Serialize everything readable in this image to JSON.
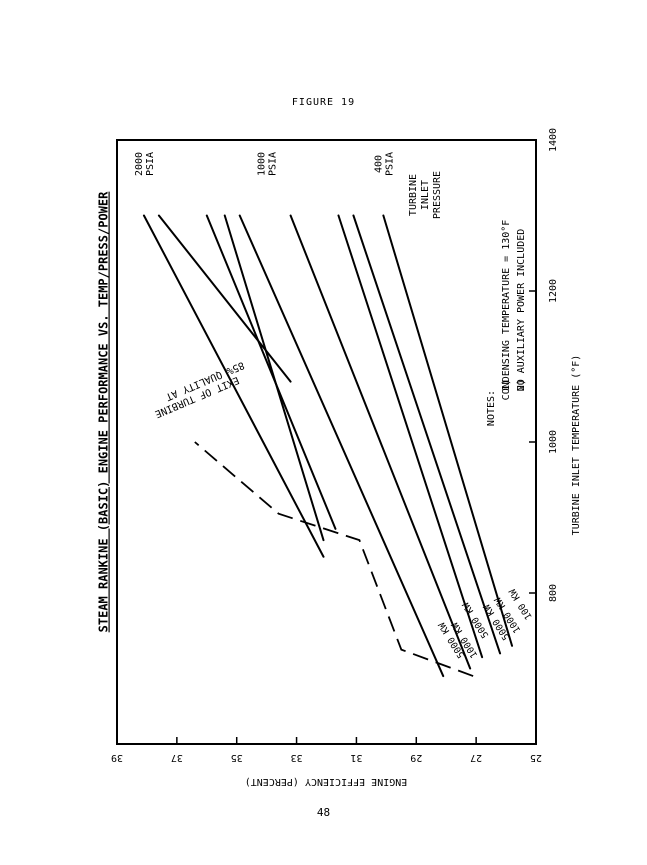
{
  "figure_label": "FIGURE 19",
  "page_number": "48",
  "chart_data": {
    "type": "line",
    "title": "STEAM RANKINE (BASIC) ENGINE PERFORMANCE VS. TEMP/PRESS/POWER",
    "xlabel": "TURBINE INLET TEMPERATURE (°F)",
    "ylabel": "ENGINE EFFICIENCY (PERCENT)",
    "xlim": [
      600,
      1400
    ],
    "ylim": [
      25,
      39
    ],
    "x_ticks": [
      "800",
      "1000",
      "1200",
      "1400"
    ],
    "y_ticks": [
      "39",
      "37",
      "35",
      "33",
      "31",
      "29",
      "27",
      "25"
    ],
    "pressure_group_title": [
      "TURBINE",
      "INLET",
      "PRESSURE"
    ],
    "pressure_labels": [
      {
        "lines": [
          "2000",
          "PSIA"
        ],
        "y": 38.1
      },
      {
        "lines": [
          "1000",
          "PSIA"
        ],
        "y": 34.0
      },
      {
        "lines": [
          "400",
          "PSIA"
        ],
        "y": 30.1
      }
    ],
    "series": [
      {
        "values": [
          {
            "x": 848,
            "y": 32.1
          },
          {
            "x": 1300,
            "y": 38.1
          }
        ]
      },
      {
        "values": [
          {
            "x": 1080,
            "y": 33.2
          },
          {
            "x": 1300,
            "y": 37.6
          }
        ]
      },
      {
        "values": [
          {
            "x": 885,
            "y": 31.7
          },
          {
            "x": 1300,
            "y": 36.0
          }
        ]
      },
      {
        "values": [
          {
            "x": 870,
            "y": 32.1
          },
          {
            "x": 1300,
            "y": 35.4
          }
        ]
      },
      {
        "values": [
          {
            "x": 690,
            "y": 28.1
          },
          {
            "x": 1300,
            "y": 34.9
          }
        ]
      },
      {
        "values": [
          {
            "x": 700,
            "y": 27.2
          },
          {
            "x": 1300,
            "y": 33.2
          }
        ]
      },
      {
        "values": [
          {
            "x": 715,
            "y": 26.8
          },
          {
            "x": 1300,
            "y": 31.6
          }
        ]
      },
      {
        "values": [
          {
            "x": 720,
            "y": 26.2
          },
          {
            "x": 1300,
            "y": 31.1
          }
        ]
      },
      {
        "values": [
          {
            "x": 730,
            "y": 25.8
          },
          {
            "x": 1300,
            "y": 30.1
          }
        ]
      }
    ],
    "power_labels": [
      "5000 KW",
      "1000 KW",
      "5000 KW",
      "5000 KW",
      "1000 KW",
      "100 KW"
    ],
    "quality_line": {
      "label": [
        "85% QUALITY AT",
        "EXIT OF TURBINE"
      ],
      "values": [
        {
          "x": 690,
          "y": 27.1
        },
        {
          "x": 725,
          "y": 29.5
        },
        {
          "x": 870,
          "y": 30.9
        },
        {
          "x": 905,
          "y": 33.6
        },
        {
          "x": 1000,
          "y": 36.4
        }
      ]
    },
    "notes_title": "NOTES:",
    "notes": [
      {
        "num": "1)",
        "text": "CONDENSING TEMPERATURE = 130°F"
      },
      {
        "num": "2)",
        "text": "NO AUXILIARY POWER INCLUDED"
      }
    ]
  }
}
